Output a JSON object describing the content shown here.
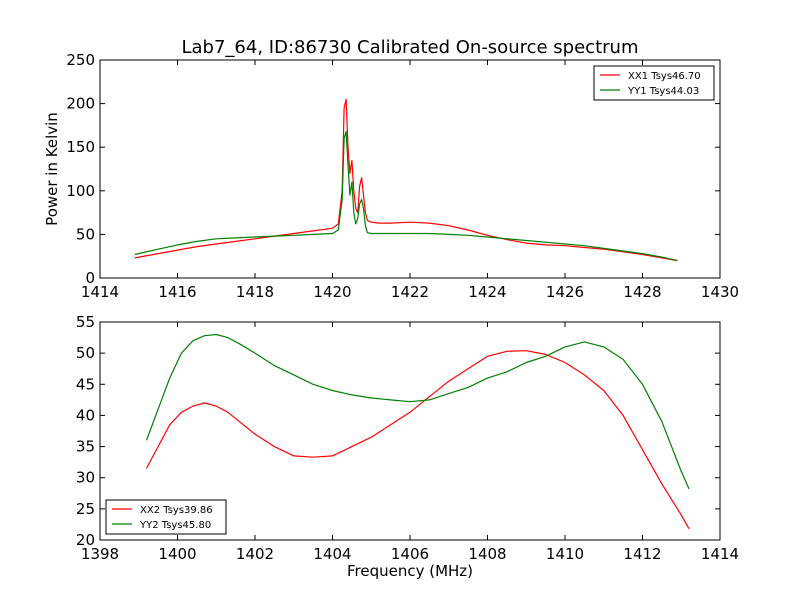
{
  "title": "Lab7_64, ID:86730 Calibrated On-source spectrum",
  "chart_data": [
    {
      "type": "line",
      "ylabel": "Power in Kelvin",
      "xlabel": "",
      "xlim": [
        1414,
        1430
      ],
      "ylim": [
        0,
        250
      ],
      "xticks": [
        1414,
        1416,
        1418,
        1420,
        1422,
        1424,
        1426,
        1428,
        1430
      ],
      "yticks": [
        0,
        50,
        100,
        150,
        200,
        250
      ],
      "legend_position": "top-right",
      "grid": false,
      "series": [
        {
          "name": "XX1 Tsys46.70",
          "color": "#ff0000",
          "x": [
            1414.9,
            1415.5,
            1416.0,
            1416.5,
            1417.0,
            1417.5,
            1418.0,
            1418.5,
            1419.0,
            1419.5,
            1420.0,
            1420.15,
            1420.25,
            1420.3,
            1420.35,
            1420.4,
            1420.45,
            1420.5,
            1420.55,
            1420.6,
            1420.65,
            1420.7,
            1420.75,
            1420.8,
            1420.85,
            1420.9,
            1421.0,
            1421.2,
            1421.5,
            1422.0,
            1422.5,
            1423.0,
            1423.5,
            1424.0,
            1424.5,
            1425.0,
            1425.5,
            1426.0,
            1426.5,
            1427.0,
            1427.5,
            1428.0,
            1428.5,
            1428.9
          ],
          "y": [
            23,
            28,
            32,
            36,
            39,
            42,
            45,
            48,
            51,
            54,
            57,
            62,
            100,
            195,
            205,
            150,
            120,
            135,
            100,
            80,
            75,
            105,
            115,
            95,
            75,
            66,
            64,
            63,
            63,
            64,
            63,
            60,
            55,
            49,
            44,
            40,
            38,
            37,
            35,
            33,
            30,
            27,
            23,
            20
          ]
        },
        {
          "name": "YY1 Tsys44.03",
          "color": "#008000",
          "x": [
            1414.9,
            1415.5,
            1416.0,
            1416.5,
            1417.0,
            1417.5,
            1418.0,
            1418.5,
            1419.0,
            1419.5,
            1420.0,
            1420.15,
            1420.25,
            1420.3,
            1420.35,
            1420.4,
            1420.45,
            1420.5,
            1420.55,
            1420.6,
            1420.65,
            1420.7,
            1420.75,
            1420.8,
            1420.85,
            1420.9,
            1421.0,
            1421.2,
            1421.5,
            1422.0,
            1422.5,
            1423.0,
            1423.5,
            1424.0,
            1424.5,
            1425.0,
            1425.5,
            1426.0,
            1426.5,
            1427.0,
            1427.5,
            1428.0,
            1428.5,
            1428.9
          ],
          "y": [
            27,
            33,
            38,
            42,
            45,
            46,
            47,
            48,
            49,
            50,
            51,
            55,
            90,
            160,
            168,
            130,
            95,
            110,
            75,
            62,
            68,
            85,
            90,
            80,
            60,
            52,
            51,
            51,
            51,
            51,
            51,
            50,
            49,
            47,
            45,
            43,
            41,
            39,
            37,
            34,
            31,
            28,
            24,
            20
          ]
        }
      ]
    },
    {
      "type": "line",
      "xlabel": "Frequency (MHz)",
      "ylabel": "",
      "xlim": [
        1398,
        1414
      ],
      "ylim": [
        20,
        55
      ],
      "xticks": [
        1398,
        1400,
        1402,
        1404,
        1406,
        1408,
        1410,
        1412,
        1414
      ],
      "yticks": [
        20,
        25,
        30,
        35,
        40,
        45,
        50,
        55
      ],
      "legend_position": "bottom-left",
      "grid": false,
      "series": [
        {
          "name": "XX2 Tsys39.86",
          "color": "#ff0000",
          "x": [
            1399.2,
            1399.5,
            1399.8,
            1400.1,
            1400.4,
            1400.7,
            1401.0,
            1401.3,
            1401.6,
            1402.0,
            1402.5,
            1403.0,
            1403.5,
            1404.0,
            1404.5,
            1405.0,
            1405.5,
            1406.0,
            1406.5,
            1407.0,
            1407.5,
            1408.0,
            1408.5,
            1409.0,
            1409.5,
            1410.0,
            1410.5,
            1411.0,
            1411.5,
            1412.0,
            1412.5,
            1413.0,
            1413.2
          ],
          "y": [
            31.5,
            35,
            38.5,
            40.5,
            41.5,
            42,
            41.5,
            40.5,
            39,
            37,
            35,
            33.5,
            33.3,
            33.5,
            35,
            36.5,
            38.5,
            40.5,
            43,
            45.5,
            47.5,
            49.5,
            50.3,
            50.4,
            49.8,
            48.5,
            46.5,
            44,
            40,
            34.5,
            29,
            24,
            21.8
          ]
        },
        {
          "name": "YY2 Tsys45.80",
          "color": "#008000",
          "x": [
            1399.2,
            1399.5,
            1399.8,
            1400.1,
            1400.4,
            1400.7,
            1401.0,
            1401.3,
            1401.6,
            1402.0,
            1402.5,
            1403.0,
            1403.5,
            1404.0,
            1404.5,
            1405.0,
            1405.5,
            1406.0,
            1406.5,
            1407.0,
            1407.5,
            1408.0,
            1408.5,
            1409.0,
            1409.5,
            1410.0,
            1410.5,
            1411.0,
            1411.5,
            1412.0,
            1412.5,
            1413.0,
            1413.2
          ],
          "y": [
            36,
            41,
            46,
            50,
            52,
            52.8,
            53,
            52.5,
            51.5,
            50,
            48,
            46.5,
            45,
            44,
            43.3,
            42.8,
            42.5,
            42.2,
            42.5,
            43.5,
            44.5,
            46,
            47,
            48.5,
            49.5,
            51,
            51.8,
            51,
            49,
            45,
            39,
            31,
            28.2
          ]
        }
      ]
    }
  ]
}
